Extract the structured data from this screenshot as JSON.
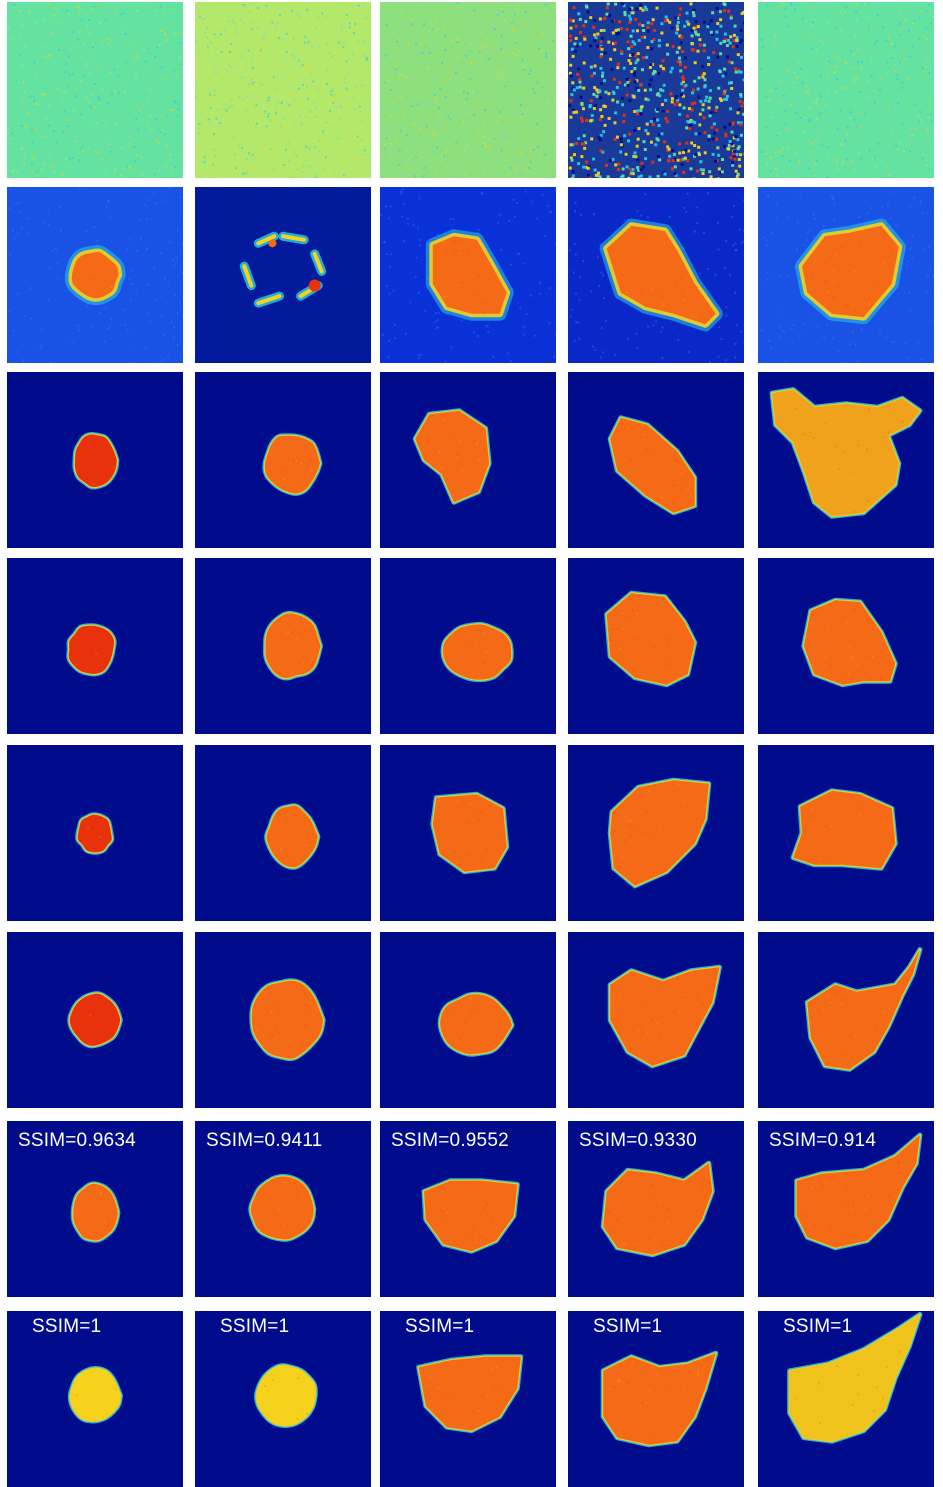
{
  "figure": {
    "rows": 8,
    "cols": 5,
    "colors": {
      "background_dark": "#000c8c",
      "noise_green": "#63e2a0",
      "noise_lime": "#b3e86a",
      "row2_blue": "#1a52e6",
      "core_red": "#e8320c",
      "core_orange": "#f56a16",
      "core_yellow": "#f7d21c",
      "edge_cyan": "#24c8e8"
    },
    "ssim_row7": [
      "SSIM=0.9634",
      "SSIM=0.9411",
      "SSIM=0.9552",
      "SSIM=0.9330",
      "SSIM=0.914"
    ],
    "ssim_row8": [
      "SSIM=1",
      "SSIM=1",
      "SSIM=1",
      "SSIM=1",
      "SSIM=1"
    ]
  }
}
